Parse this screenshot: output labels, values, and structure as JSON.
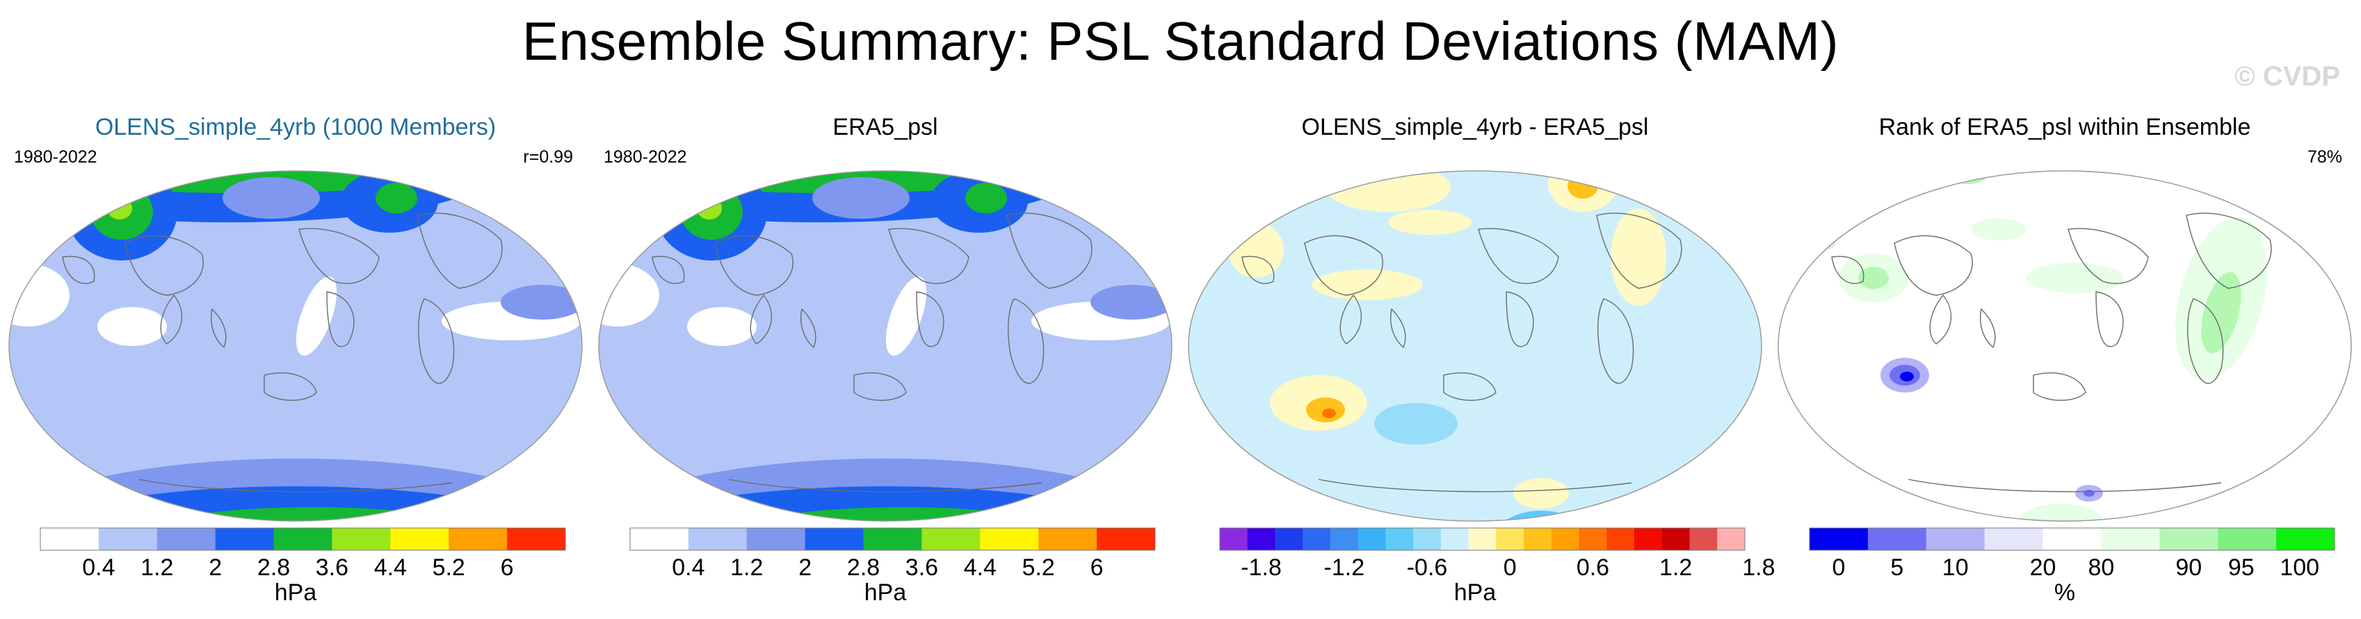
{
  "title": "Ensemble Summary: PSL Standard Deviations (MAM)",
  "watermark": "© CVDP",
  "chart_data": [
    {
      "type": "heatmap",
      "title": "OLENS_simple_4yrb (1000 Members)",
      "period": "1980-2022",
      "annotation": "r=0.99",
      "units": "hPa",
      "colorbar": {
        "levels": [
          0.4,
          1.2,
          2,
          2.8,
          3.6,
          4.4,
          5.2,
          6
        ],
        "tick_labels": [
          "0.4",
          "1.2",
          "2",
          "2.8",
          "3.6",
          "4.4",
          "5.2",
          "6"
        ],
        "colors": [
          "#ffffff",
          "#b3c6f7",
          "#8097ef",
          "#1a5ff0",
          "#14b832",
          "#9be51d",
          "#fff500",
          "#ff9f00",
          "#ff2a00"
        ]
      }
    },
    {
      "type": "heatmap",
      "title": "ERA5_psl",
      "period": "1980-2022",
      "units": "hPa",
      "colorbar": {
        "levels": [
          0.4,
          1.2,
          2,
          2.8,
          3.6,
          4.4,
          5.2,
          6
        ],
        "tick_labels": [
          "0.4",
          "1.2",
          "2",
          "2.8",
          "3.6",
          "4.4",
          "5.2",
          "6"
        ],
        "colors": [
          "#ffffff",
          "#b3c6f7",
          "#8097ef",
          "#1a5ff0",
          "#14b832",
          "#9be51d",
          "#fff500",
          "#ff9f00",
          "#ff2a00"
        ]
      }
    },
    {
      "type": "heatmap",
      "title": "OLENS_simple_4yrb - ERA5_psl",
      "units": "hPa",
      "colorbar": {
        "tick_labels": [
          "-1.8",
          "-1.2",
          "-0.6",
          "0",
          "0.6",
          "1.2",
          "1.8"
        ],
        "colors": [
          "#8a2be2",
          "#3a00e8",
          "#1f3df0",
          "#2f68f2",
          "#3e8ef5",
          "#39b0f7",
          "#5fcaf8",
          "#97dcf8",
          "#cfeefc",
          "#fff9c4",
          "#ffe45a",
          "#ffc21a",
          "#ffa000",
          "#ff7400",
          "#ff4200",
          "#f20c00",
          "#cc0000",
          "#e05050",
          "#ffb0b0"
        ]
      }
    },
    {
      "type": "heatmap",
      "title": "Rank of ERA5_psl within Ensemble",
      "annotation": "78%",
      "units": "%",
      "colorbar": {
        "tick_labels": [
          "0",
          "5",
          "10",
          "20",
          "80",
          "90",
          "95",
          "100"
        ],
        "colors": [
          "#0000f2",
          "#6f6ff2",
          "#b3b3f7",
          "#e6e6fb",
          "#ffffff",
          "#e6ffe6",
          "#b3f7b3",
          "#7fef7f",
          "#0ef00e"
        ]
      }
    }
  ]
}
